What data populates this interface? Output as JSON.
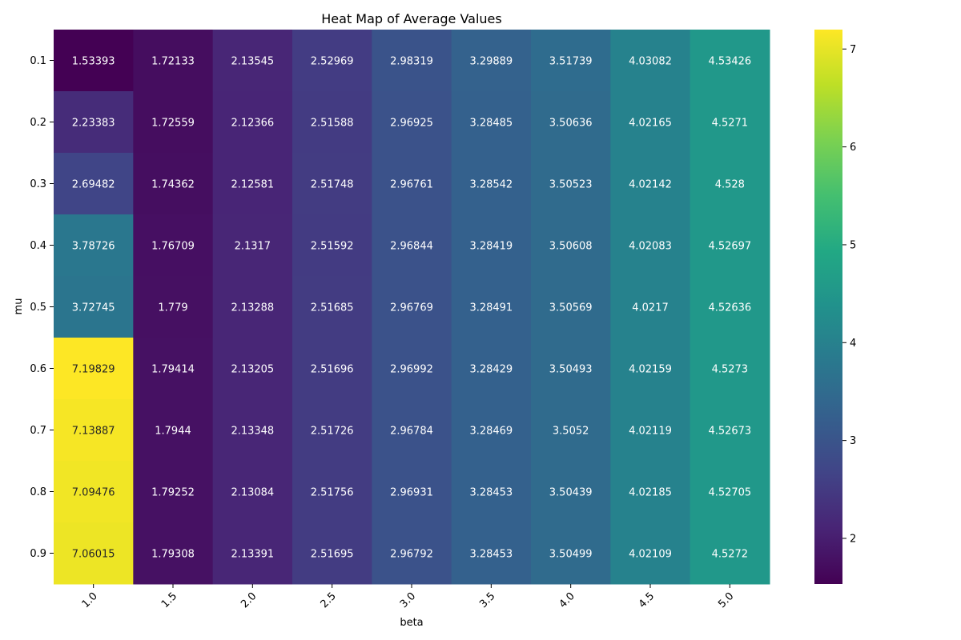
{
  "chart_data": {
    "type": "heatmap",
    "title": "Heat Map of Average Values",
    "xlabel": "beta",
    "ylabel": "mu",
    "x_categories": [
      "1.0",
      "1.5",
      "2.0",
      "2.5",
      "3.0",
      "3.5",
      "4.0",
      "4.5",
      "5.0"
    ],
    "y_categories": [
      "0.1",
      "0.2",
      "0.3",
      "0.4",
      "0.5",
      "0.6",
      "0.7",
      "0.8",
      "0.9"
    ],
    "values": [
      [
        "1.53393",
        "1.72133",
        "2.13545",
        "2.52969",
        "2.98319",
        "3.29889",
        "3.51739",
        "4.03082",
        "4.53426"
      ],
      [
        "2.23383",
        "1.72559",
        "2.12366",
        "2.51588",
        "2.96925",
        "3.28485",
        "3.50636",
        "4.02165",
        "4.5271"
      ],
      [
        "2.69482",
        "1.74362",
        "2.12581",
        "2.51748",
        "2.96761",
        "3.28542",
        "3.50523",
        "4.02142",
        "4.528"
      ],
      [
        "3.78726",
        "1.76709",
        "2.1317",
        "2.51592",
        "2.96844",
        "3.28419",
        "3.50608",
        "4.02083",
        "4.52697"
      ],
      [
        "3.72745",
        "1.779",
        "2.13288",
        "2.51685",
        "2.96769",
        "3.28491",
        "3.50569",
        "4.0217",
        "4.52636"
      ],
      [
        "7.19829",
        "1.79414",
        "2.13205",
        "2.51696",
        "2.96992",
        "3.28429",
        "3.50493",
        "4.02159",
        "4.5273"
      ],
      [
        "7.13887",
        "1.7944",
        "2.13348",
        "2.51726",
        "2.96784",
        "3.28469",
        "3.5052",
        "4.02119",
        "4.52673"
      ],
      [
        "7.09476",
        "1.79252",
        "2.13084",
        "2.51756",
        "2.96931",
        "3.28453",
        "3.50439",
        "4.02185",
        "4.52705"
      ],
      [
        "7.06015",
        "1.79308",
        "2.13391",
        "2.51695",
        "2.96792",
        "3.28453",
        "3.50499",
        "4.02109",
        "4.5272"
      ]
    ],
    "colormap": "viridis",
    "vmin": 1.53393,
    "vmax": 7.19829,
    "colorbar_ticks": [
      "2",
      "3",
      "4",
      "5",
      "6",
      "7"
    ],
    "colorbar_tick_values": [
      2,
      3,
      4,
      5,
      6,
      7
    ],
    "x_tick_rotation_deg": 45,
    "legend": "colorbar right"
  }
}
